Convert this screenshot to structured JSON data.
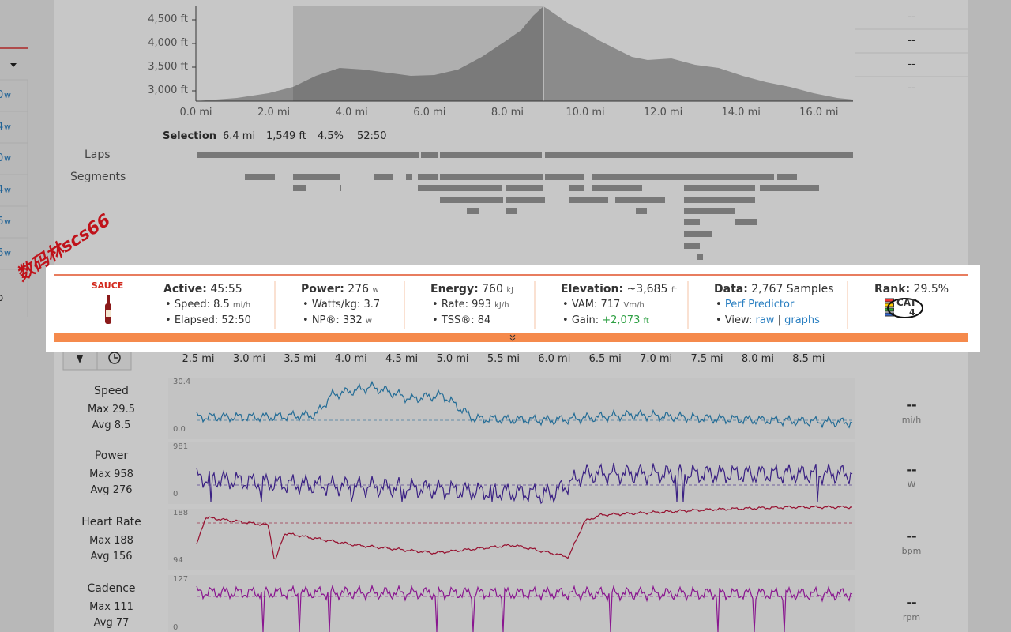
{
  "sidebar": {
    "values": [
      "0",
      "4",
      "0",
      "4",
      "6",
      "6"
    ],
    "unit": "w",
    "bottom": "p"
  },
  "placeholder": "--",
  "elevation": {
    "yticks": [
      "4,500 ft",
      "4,000 ft",
      "3,500 ft",
      "3,000 ft"
    ],
    "xticks": [
      "0.0 mi",
      "2.0 mi",
      "4.0 mi",
      "6.0 mi",
      "8.0 mi",
      "10.0 mi",
      "12.0 mi",
      "14.0 mi",
      "16.0 mi"
    ]
  },
  "selection": {
    "label": "Selection",
    "distance": "6.4 mi",
    "climb": "1,549 ft",
    "grade": "4.5%",
    "time": "52:50"
  },
  "rows": {
    "laps": "Laps",
    "segments": "Segments"
  },
  "panel": {
    "brand": "SAUCE",
    "stats": [
      {
        "label": "Active:",
        "value": "45:55",
        "items": [
          {
            "label": "Speed:",
            "value": "8.5",
            "unit": "mi/h"
          },
          {
            "label": "Elapsed:",
            "value": "52:50"
          }
        ]
      },
      {
        "label": "Power:",
        "value": "276",
        "unit": "w",
        "items": [
          {
            "label": "Watts/kg:",
            "value": "3.7"
          },
          {
            "label": "NP®:",
            "value": "332",
            "unit": "w"
          }
        ]
      },
      {
        "label": "Energy:",
        "value": "760",
        "unit": "kJ",
        "items": [
          {
            "label": "Rate:",
            "value": "993",
            "unit": "kJ/h"
          },
          {
            "label": "TSS®:",
            "value": "84"
          }
        ]
      },
      {
        "label": "Elevation:",
        "value": "~3,685",
        "unit": "ft",
        "items": [
          {
            "label": "VAM:",
            "value": "717",
            "unit": "Vm/h"
          },
          {
            "label": "Gain:",
            "value": "+2,073",
            "unit": "ft"
          }
        ]
      },
      {
        "label": "Data:",
        "value": "2,767 Samples",
        "items": [
          {
            "link": "Perf Predictor"
          },
          {
            "label": "View:",
            "links": [
              "raw",
              "graphs"
            ],
            "separator": "|"
          }
        ]
      },
      {
        "label": "Rank:",
        "value": "29.5%",
        "badge": "CAT",
        "badge_level": "4"
      }
    ]
  },
  "timeline": {
    "xticks": [
      "2.5 mi",
      "3.0 mi",
      "3.5 mi",
      "4.0 mi",
      "4.5 mi",
      "5.0 mi",
      "5.5 mi",
      "6.0 mi",
      "6.5 mi",
      "7.0 mi",
      "7.5 mi",
      "8.0 mi",
      "8.5 mi"
    ]
  },
  "streams": [
    {
      "name": "Speed",
      "max": "Max 29.5",
      "avg": "Avg 8.5",
      "top": "30.4",
      "bottom": "0.0",
      "unit": "mi/h"
    },
    {
      "name": "Power",
      "max": "Max 958",
      "avg": "Avg 276",
      "top": "981",
      "bottom": "0",
      "unit": "W"
    },
    {
      "name": "Heart Rate",
      "max": "Max 188",
      "avg": "Avg 156",
      "top": "188",
      "bottom": "94",
      "unit": "bpm"
    },
    {
      "name": "Cadence",
      "max": "Max 111",
      "avg": "Avg 77",
      "top": "127",
      "bottom": "0",
      "unit": "rpm"
    }
  ],
  "watermark": "数码林scs66"
}
